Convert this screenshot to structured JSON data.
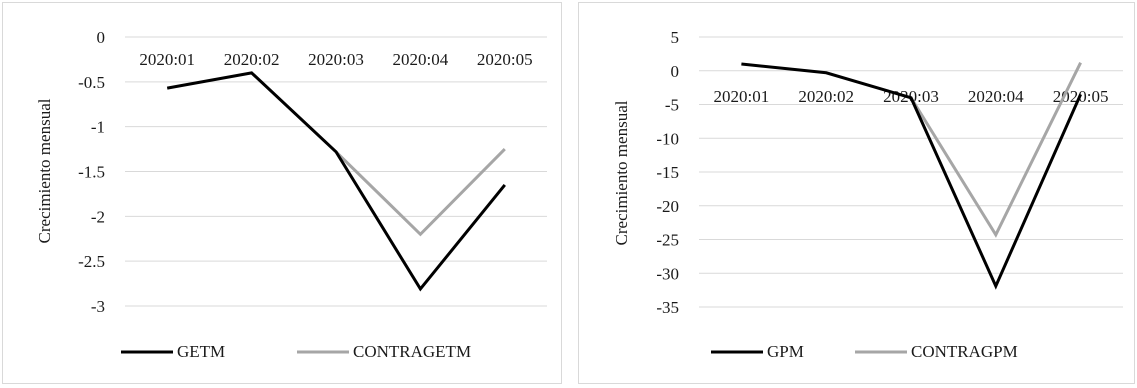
{
  "chart_data": [
    {
      "type": "line",
      "title": "",
      "xlabel": "",
      "ylabel": "Crecimiento mensual",
      "categories": [
        "2020:01",
        "2020:02",
        "2020:03",
        "2020:04",
        "2020:05"
      ],
      "ylim": [
        -3,
        0
      ],
      "ytick_labels": [
        "0",
        "-0.5",
        "-1",
        "-1.5",
        "-2",
        "-2.5",
        "-3"
      ],
      "grid": true,
      "legend_position": "bottom",
      "series": [
        {
          "name": "GETM",
          "color": "#000000",
          "values": [
            -0.57,
            -0.4,
            -1.28,
            -2.81,
            -1.65
          ]
        },
        {
          "name": "CONTRAGETM",
          "color": "#a6a6a6",
          "values": [
            null,
            null,
            -1.28,
            -2.2,
            -1.25
          ]
        }
      ]
    },
    {
      "type": "line",
      "title": "",
      "xlabel": "",
      "ylabel": "Crecimiento mensual",
      "categories": [
        "2020:01",
        "2020:02",
        "2020:03",
        "2020:04",
        "2020:05"
      ],
      "ylim": [
        -35,
        5
      ],
      "ytick_labels": [
        "5",
        "0",
        "-5",
        "-10",
        "-15",
        "-20",
        "-25",
        "-30",
        "-35"
      ],
      "grid": true,
      "legend_position": "bottom",
      "series": [
        {
          "name": "GPM",
          "color": "#000000",
          "values": [
            1.0,
            -0.3,
            -4.0,
            -31.9,
            -3.5
          ]
        },
        {
          "name": "CONTRAGPM",
          "color": "#a6a6a6",
          "values": [
            null,
            null,
            -4.0,
            -24.3,
            1.2
          ]
        }
      ]
    }
  ]
}
